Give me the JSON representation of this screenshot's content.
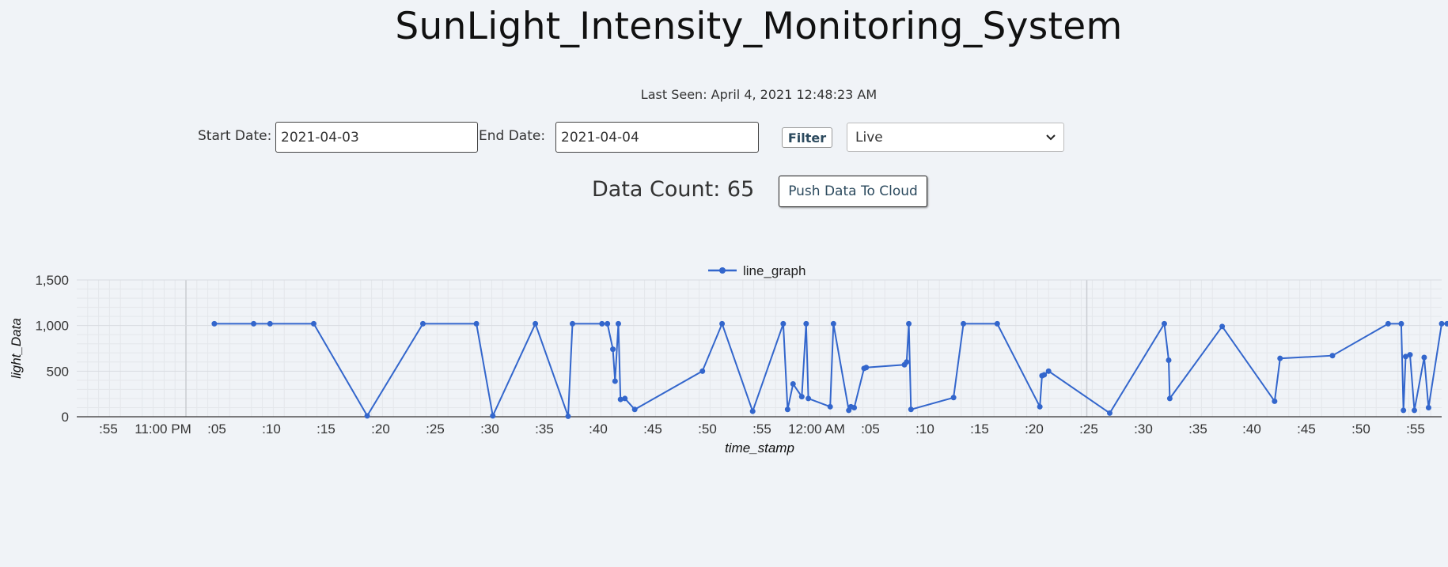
{
  "header": {
    "title": "SunLight_Intensity_Monitoring_System"
  },
  "status": {
    "last_seen": "Last Seen: April 4, 2021 12:48:23 AM"
  },
  "filters": {
    "start_label": "Start Date:",
    "start_value": "2021-04-03",
    "end_label": "End Date:",
    "end_value": "2021-04-04",
    "filter_label": "Filter",
    "mode_value": "Live"
  },
  "summary": {
    "data_count": "Data Count: 65",
    "push_label": "Push Data To Cloud"
  },
  "colors": {
    "series": "#3366cc",
    "grid": "#d8dbe0",
    "background": "#f0f3f7"
  },
  "chart_data": {
    "type": "line",
    "title": "",
    "xlabel": "time_stamp",
    "ylabel": "light_Data",
    "x_unit": "minutes from 10:50 PM",
    "xlim": [
      0,
      125
    ],
    "ylim": [
      0,
      1500
    ],
    "yticks": [
      0,
      500,
      1000,
      1500
    ],
    "ytick_labels": [
      "0",
      "500",
      "1,000",
      "1,500"
    ],
    "xticks": [
      5,
      10,
      15,
      20,
      25,
      30,
      35,
      40,
      45,
      50,
      55,
      60,
      65,
      70,
      75,
      80,
      85,
      90,
      95,
      100,
      105,
      110,
      115,
      120,
      125
    ],
    "xtick_labels": [
      ":55",
      "11:00 PM",
      ":05",
      ":10",
      ":15",
      ":20",
      ":25",
      ":30",
      ":35",
      ":40",
      ":45",
      ":50",
      ":55",
      "12:00 AM",
      ":05",
      ":10",
      ":15",
      ":20",
      ":25",
      ":30",
      ":35",
      ":40",
      ":45",
      ":50",
      ":55"
    ],
    "grid": true,
    "legend": "top-center",
    "series": [
      {
        "name": "line_graph",
        "x": [
          12.6,
          16.2,
          17.7,
          21.7,
          26.6,
          31.7,
          36.6,
          38.1,
          42.0,
          45.0,
          45.4,
          48.1,
          48.6,
          49.1,
          49.3,
          49.6,
          49.8,
          50.2,
          51.1,
          57.3,
          59.1,
          61.9,
          64.7,
          65.1,
          65.6,
          66.4,
          66.8,
          67.0,
          69.0,
          69.3,
          70.7,
          70.9,
          71.2,
          72.1,
          72.3,
          75.8,
          76.0,
          76.2,
          76.4,
          80.3,
          81.2,
          84.3,
          88.2,
          88.4,
          88.6,
          89.0,
          94.6,
          99.6,
          100.0,
          100.1,
          104.9,
          109.7,
          110.2,
          115.0,
          120.1,
          121.3,
          121.5,
          121.7,
          122.1,
          122.5,
          123.4,
          123.8,
          125.0,
          125.5,
          125.9
        ],
        "y": [
          1020,
          1020,
          1020,
          1020,
          10,
          1020,
          1020,
          10,
          1020,
          5,
          1020,
          1020,
          1020,
          740,
          390,
          1020,
          190,
          200,
          80,
          500,
          1020,
          60,
          1020,
          80,
          360,
          220,
          1020,
          200,
          110,
          1020,
          70,
          110,
          100,
          530,
          540,
          570,
          600,
          1020,
          80,
          210,
          1020,
          1020,
          110,
          450,
          460,
          500,
          40,
          1020,
          620,
          200,
          990,
          170,
          640,
          670,
          1020,
          1020,
          70,
          660,
          680,
          70,
          650,
          100,
          1020,
          1020,
          1020
        ]
      }
    ]
  }
}
